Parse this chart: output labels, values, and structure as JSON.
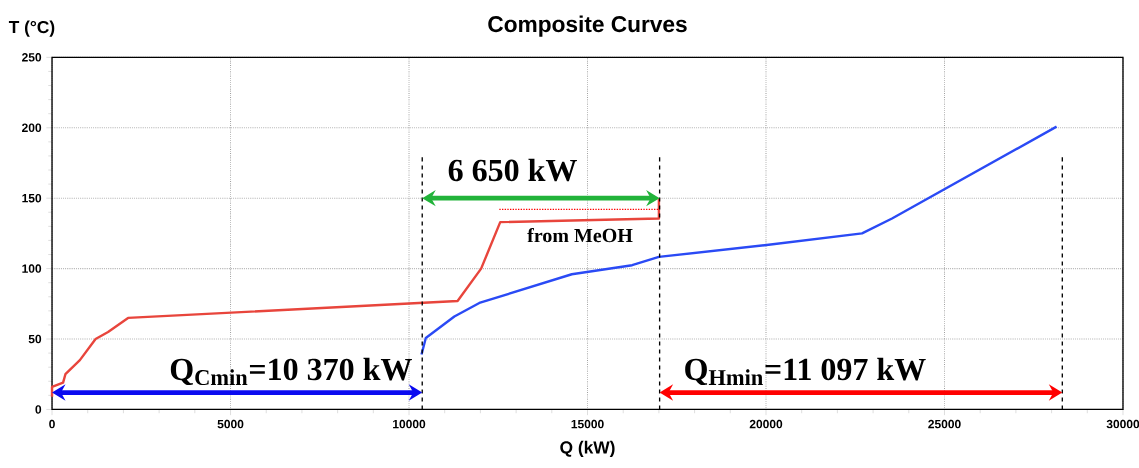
{
  "chart_data": {
    "type": "line",
    "title": "Composite Curves",
    "xlabel": "Q (kW)",
    "ylabel": "T (°C)",
    "xlim": [
      0,
      30000
    ],
    "ylim": [
      0,
      250
    ],
    "xticks": [
      0,
      5000,
      10000,
      15000,
      20000,
      25000,
      30000
    ],
    "yticks": [
      0,
      50,
      100,
      150,
      200,
      250
    ],
    "grid": true,
    "marker": "none",
    "series": [
      {
        "color": "#e8453c",
        "x": [
          0,
          0,
          310,
          375,
          780,
          1220,
          1570,
          2130,
          11360,
          12020,
          12555,
          17000,
          17000
        ],
        "values": [
          9,
          16,
          19,
          25,
          35,
          50,
          55,
          65,
          77,
          100,
          133,
          135.6,
          150
        ]
      },
      {
        "color": "#ff0000",
        "line_style": "dotted",
        "x": [
          12530,
          17000
        ],
        "values": [
          142,
          142
        ]
      },
      {
        "color": "#2a4af5",
        "x": [
          10350,
          10470,
          11270,
          11970,
          14560,
          16250,
          17000,
          19960,
          22690,
          23530,
          28140
        ],
        "values": [
          39,
          50.7,
          66,
          75.6,
          96,
          102.4,
          108.3,
          116.6,
          125,
          135.6,
          200.8
        ]
      }
    ],
    "ref_lines": [
      {
        "axis": "x",
        "value": 10370,
        "line_style": "dashed"
      },
      {
        "axis": "x",
        "value": 17020,
        "line_style": "dashed"
      },
      {
        "axis": "x",
        "value": 28300,
        "line_style": "dashed"
      }
    ],
    "annotations": [
      "6 650 kW",
      "from MeOH",
      "Q$_{Cmin}$=10 370 kW",
      "Q$_{Hmin}$=11 097 kW"
    ]
  }
}
